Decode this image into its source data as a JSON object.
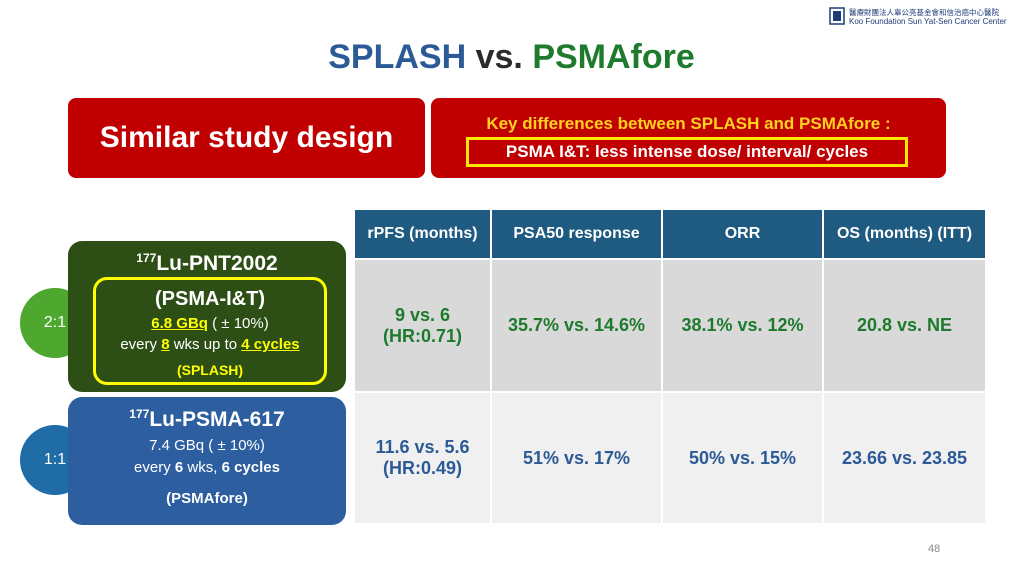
{
  "logo": {
    "chinese": "醫療財團法人辜公亮基金會和信治癌中心醫院",
    "english": "Koo Foundation Sun Yat-Sen Cancer Center"
  },
  "title": {
    "part1": "SPLASH",
    "part2": "vs.",
    "part3": "PSMAfore"
  },
  "similar_design": "Similar study design",
  "key_differences": {
    "heading": "Key differences between SPLASH and  PSMAfore :",
    "highlight": "PSMA I&T: less intense dose/ interval/ cycles"
  },
  "splash_arm": {
    "ratio": "2:1",
    "isotope": "177",
    "drug": "Lu-PNT2002",
    "agent": "(PSMA-I&T)",
    "dose": "6.8 GBq",
    "dose_tol": " ( ± 10%)",
    "every": "every ",
    "interval": "8",
    "mid": " wks up to ",
    "cycles": "4 cycles",
    "trial": "(SPLASH)"
  },
  "psmafore_arm": {
    "ratio": "1:1",
    "isotope": "177",
    "drug": "Lu-PSMA-617",
    "dose": "7.4 GBq ( ± 10%)",
    "every": "every ",
    "interval": "6",
    "mid": " wks, ",
    "cycles": "6 cycles",
    "trial": "(PSMAfore)"
  },
  "table": {
    "headers": [
      "rPFS (months)",
      "PSA50 response",
      "ORR",
      "OS (months) (ITT)"
    ],
    "splash_row": {
      "rpfs_l1": "9 vs. 6",
      "rpfs_l2": "(HR:0.71)",
      "psa50": "35.7% vs. 14.6%",
      "orr": "38.1% vs. 12%",
      "os": "20.8 vs. NE"
    },
    "psmafore_row": {
      "rpfs_l1": "11.6 vs. 5.6",
      "rpfs_l2": "(HR:0.49)",
      "psa50": "51% vs. 17%",
      "orr": "50% vs. 15%",
      "os": "23.66 vs. 23.85"
    }
  },
  "page_number": "48",
  "colors": {
    "splash_blue": "#2b5a96",
    "psmafore_green": "#1e7a2d",
    "red_box": "#c00000",
    "header_teal": "#1f5a80"
  }
}
